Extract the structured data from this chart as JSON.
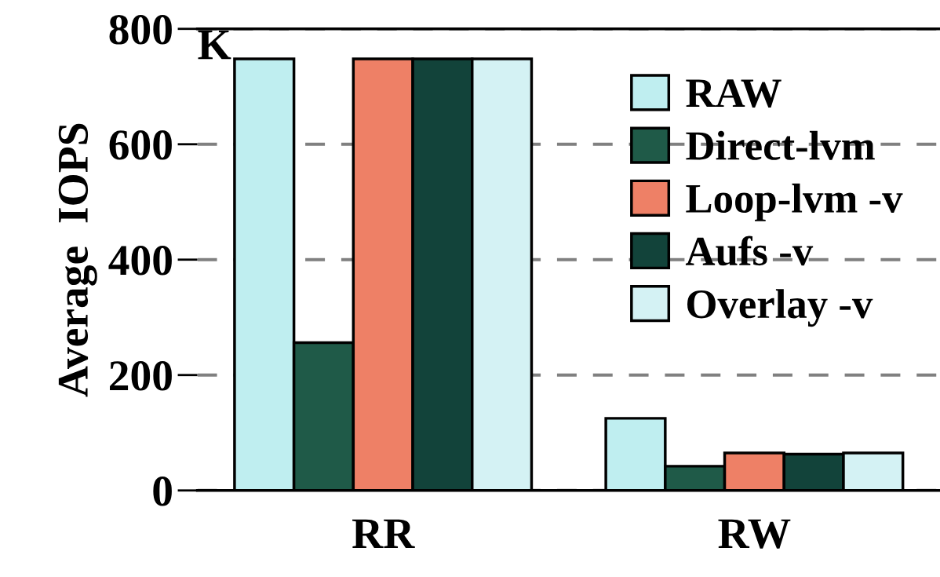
{
  "chart_data": {
    "type": "bar",
    "ylabel": "Average  IOPS",
    "categories": [
      "RR",
      "RW"
    ],
    "series": [
      {
        "name": "RAW",
        "color": "#bfeef0",
        "values": [
          748,
          125
        ]
      },
      {
        "name": "Direct-lvm",
        "color": "#1f5a48",
        "values": [
          256,
          42
        ]
      },
      {
        "name": "Loop-lvm -v",
        "color": "#ee8066",
        "values": [
          748,
          65
        ]
      },
      {
        "name": "Aufs -v",
        "color": "#12433a",
        "values": [
          748,
          63
        ]
      },
      {
        "name": "Overlay -v",
        "color": "#d4f2f4",
        "values": [
          748,
          65
        ]
      }
    ],
    "ylim": [
      0,
      800
    ],
    "yticks": [
      0,
      200,
      400,
      600,
      800
    ],
    "grid": "y",
    "legend": "top right",
    "annotations": [
      "K"
    ]
  }
}
